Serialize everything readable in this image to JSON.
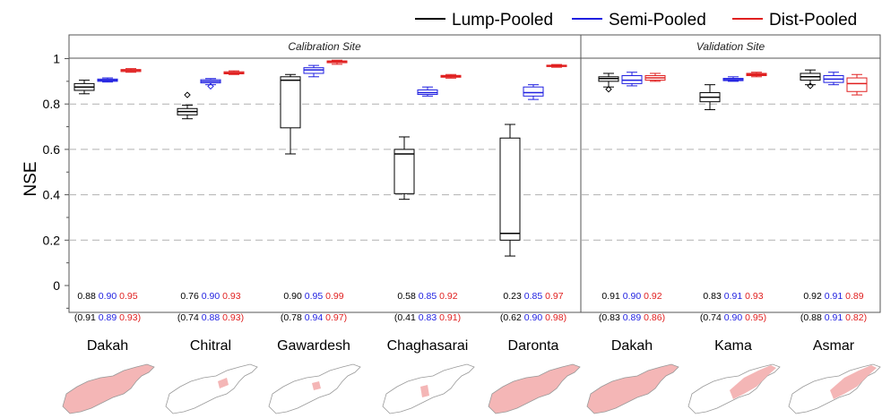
{
  "chart_data": {
    "type": "box",
    "ylabel": "NSE",
    "ylim": [
      -0.12,
      1.1
    ],
    "yticks": [
      0,
      0.2,
      0.4,
      0.6,
      0.8,
      1
    ],
    "ytick_labels": [
      "0",
      "0.2",
      "0.4",
      "0.6",
      "0.8",
      "1"
    ],
    "grid": "horizontal dashed",
    "legend": {
      "placement": "top-right",
      "entries": [
        {
          "name": "Lump-Pooled",
          "color": "#000000"
        },
        {
          "name": "Semi-Pooled",
          "color": "#1f1fe0"
        },
        {
          "name": "Dist-Pooled",
          "color": "#e01f1f"
        }
      ]
    },
    "panels": [
      {
        "title": "Calibration Site",
        "stations": [
          "Dakah",
          "Chitral",
          "Gawardesh",
          "Chaghasarai",
          "Daronta"
        ]
      },
      {
        "title": "Validation Site",
        "stations": [
          "Dakah",
          "Kama",
          "Asmar"
        ]
      }
    ],
    "stations": [
      {
        "name": "Dakah",
        "panel": 0,
        "boxes": [
          {
            "series": "Lump-Pooled",
            "min": 0.845,
            "q1": 0.86,
            "median": 0.875,
            "q3": 0.89,
            "max": 0.905,
            "outliers": []
          },
          {
            "series": "Semi-Pooled",
            "min": 0.897,
            "q1": 0.9,
            "median": 0.905,
            "q3": 0.91,
            "max": 0.915,
            "outliers": []
          },
          {
            "series": "Dist-Pooled",
            "min": 0.94,
            "q1": 0.943,
            "median": 0.948,
            "q3": 0.952,
            "max": 0.956,
            "outliers": []
          }
        ],
        "nse": {
          "values": [
            "0.88",
            "0.90",
            "0.95"
          ],
          "paren": [
            "0.91",
            "0.89",
            "0.93"
          ]
        }
      },
      {
        "name": "Chitral",
        "panel": 0,
        "boxes": [
          {
            "series": "Lump-Pooled",
            "min": 0.735,
            "q1": 0.752,
            "median": 0.767,
            "q3": 0.78,
            "max": 0.795,
            "outliers": [
              0.84
            ]
          },
          {
            "series": "Semi-Pooled",
            "min": 0.885,
            "q1": 0.893,
            "median": 0.9,
            "q3": 0.907,
            "max": 0.912,
            "outliers": [
              0.878
            ]
          },
          {
            "series": "Dist-Pooled",
            "min": 0.93,
            "q1": 0.933,
            "median": 0.937,
            "q3": 0.942,
            "max": 0.946,
            "outliers": []
          }
        ],
        "nse": {
          "values": [
            "0.76",
            "0.90",
            "0.93"
          ],
          "paren": [
            "0.74",
            "0.88",
            "0.93"
          ]
        }
      },
      {
        "name": "Gawardesh",
        "panel": 0,
        "boxes": [
          {
            "series": "Lump-Pooled",
            "min": 0.58,
            "q1": 0.695,
            "median": 0.905,
            "q3": 0.92,
            "max": 0.93,
            "outliers": []
          },
          {
            "series": "Semi-Pooled",
            "min": 0.92,
            "q1": 0.935,
            "median": 0.95,
            "q3": 0.96,
            "max": 0.97,
            "outliers": []
          },
          {
            "series": "Dist-Pooled",
            "min": 0.975,
            "q1": 0.982,
            "median": 0.987,
            "q3": 0.99,
            "max": 0.993,
            "outliers": []
          }
        ],
        "nse": {
          "values": [
            "0.90",
            "0.95",
            "0.99"
          ],
          "paren": [
            "0.78",
            "0.94",
            "0.97"
          ]
        }
      },
      {
        "name": "Chaghasarai",
        "panel": 0,
        "boxes": [
          {
            "series": "Lump-Pooled",
            "min": 0.38,
            "q1": 0.405,
            "median": 0.58,
            "q3": 0.6,
            "max": 0.655,
            "outliers": []
          },
          {
            "series": "Semi-Pooled",
            "min": 0.835,
            "q1": 0.842,
            "median": 0.85,
            "q3": 0.862,
            "max": 0.875,
            "outliers": []
          },
          {
            "series": "Dist-Pooled",
            "min": 0.914,
            "q1": 0.918,
            "median": 0.922,
            "q3": 0.926,
            "max": 0.93,
            "outliers": []
          }
        ],
        "nse": {
          "values": [
            "0.58",
            "0.85",
            "0.92"
          ],
          "paren": [
            "0.41",
            "0.83",
            "0.91"
          ]
        }
      },
      {
        "name": "Daronta",
        "panel": 0,
        "boxes": [
          {
            "series": "Lump-Pooled",
            "min": 0.13,
            "q1": 0.2,
            "median": 0.23,
            "q3": 0.65,
            "max": 0.71,
            "outliers": []
          },
          {
            "series": "Semi-Pooled",
            "min": 0.82,
            "q1": 0.835,
            "median": 0.85,
            "q3": 0.875,
            "max": 0.885,
            "outliers": []
          },
          {
            "series": "Dist-Pooled",
            "min": 0.962,
            "q1": 0.965,
            "median": 0.968,
            "q3": 0.971,
            "max": 0.974,
            "outliers": []
          }
        ],
        "nse": {
          "values": [
            "0.23",
            "0.85",
            "0.97"
          ],
          "paren": [
            "0.62",
            "0.90",
            "0.98"
          ]
        }
      },
      {
        "name": "Dakah",
        "panel": 1,
        "boxes": [
          {
            "series": "Lump-Pooled",
            "min": 0.875,
            "q1": 0.9,
            "median": 0.912,
            "q3": 0.92,
            "max": 0.935,
            "outliers": [
              0.865
            ]
          },
          {
            "series": "Semi-Pooled",
            "min": 0.88,
            "q1": 0.89,
            "median": 0.905,
            "q3": 0.925,
            "max": 0.94,
            "outliers": []
          },
          {
            "series": "Dist-Pooled",
            "min": 0.9,
            "q1": 0.905,
            "median": 0.915,
            "q3": 0.925,
            "max": 0.935,
            "outliers": []
          }
        ],
        "nse": {
          "values": [
            "0.91",
            "0.90",
            "0.92"
          ],
          "paren": [
            "0.83",
            "0.89",
            "0.86"
          ]
        }
      },
      {
        "name": "Kama",
        "panel": 1,
        "boxes": [
          {
            "series": "Lump-Pooled",
            "min": 0.775,
            "q1": 0.81,
            "median": 0.83,
            "q3": 0.85,
            "max": 0.885,
            "outliers": []
          },
          {
            "series": "Semi-Pooled",
            "min": 0.9,
            "q1": 0.903,
            "median": 0.908,
            "q3": 0.913,
            "max": 0.92,
            "outliers": []
          },
          {
            "series": "Dist-Pooled",
            "min": 0.92,
            "q1": 0.925,
            "median": 0.93,
            "q3": 0.935,
            "max": 0.94,
            "outliers": []
          }
        ],
        "nse": {
          "values": [
            "0.83",
            "0.91",
            "0.93"
          ],
          "paren": [
            "0.74",
            "0.90",
            "0.95"
          ]
        }
      },
      {
        "name": "Asmar",
        "panel": 1,
        "boxes": [
          {
            "series": "Lump-Pooled",
            "min": 0.885,
            "q1": 0.905,
            "median": 0.92,
            "q3": 0.935,
            "max": 0.95,
            "outliers": [
              0.88
            ]
          },
          {
            "series": "Semi-Pooled",
            "min": 0.885,
            "q1": 0.895,
            "median": 0.91,
            "q3": 0.925,
            "max": 0.94,
            "outliers": []
          },
          {
            "series": "Dist-Pooled",
            "min": 0.84,
            "q1": 0.855,
            "median": 0.89,
            "q3": 0.915,
            "max": 0.93,
            "outliers": []
          }
        ],
        "nse": {
          "values": [
            "0.92",
            "0.91",
            "0.89"
          ],
          "paren": [
            "0.88",
            "0.91",
            "0.82"
          ]
        }
      }
    ]
  },
  "colors": {
    "lump": "#000000",
    "semi": "#1f1fe0",
    "dist": "#e01f1f",
    "basin_fill": "#f4b6b6",
    "basin_stroke": "#999999",
    "grid": "#b0b0b0"
  }
}
